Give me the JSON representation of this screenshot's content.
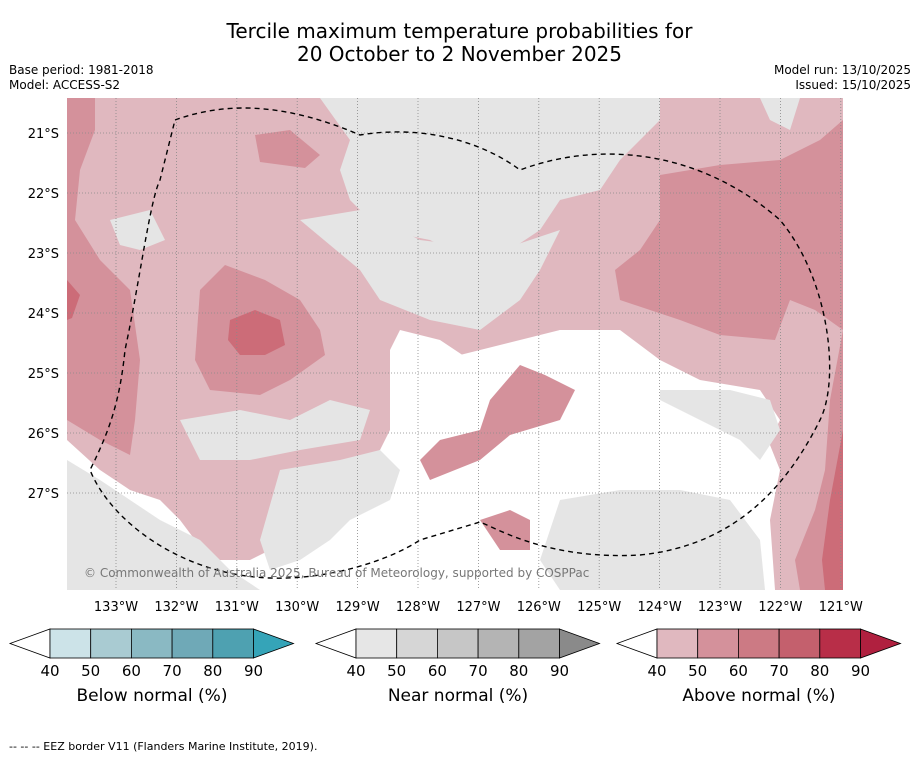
{
  "title_line1": "Tercile maximum temperature probabilities for",
  "title_line2": "20 October to 2 November 2025",
  "base_period": "Base period: 1981-2018",
  "model": "Model: ACCESS-S2",
  "model_run": "Model run: 13/10/2025",
  "issued": "Issued: 15/10/2025",
  "copyright": "© Commonwealth of Australia 2025, Bureau of Meteorology, supported by COSPPac",
  "lat_labels": [
    "21°S",
    "22°S",
    "23°S",
    "24°S",
    "25°S",
    "26°S",
    "27°S"
  ],
  "lon_labels": [
    "133°W",
    "132°W",
    "131°W",
    "130°W",
    "129°W",
    "128°W",
    "127°W",
    "126°W",
    "125°W",
    "124°W",
    "123°W",
    "122°W",
    "121°W"
  ],
  "colorbars": [
    {
      "label": "Below normal (%)",
      "ticks": [
        "40",
        "50",
        "60",
        "70",
        "80",
        "90"
      ],
      "colors": [
        "#ffffff",
        "#cce3e8",
        "#a9cbd2",
        "#8ab9c3",
        "#6fa9b7",
        "#4ea1b1",
        "#35a4b8"
      ]
    },
    {
      "label": "Near normal (%)",
      "ticks": [
        "40",
        "50",
        "60",
        "70",
        "80",
        "90"
      ],
      "colors": [
        "#ffffff",
        "#e6e6e6",
        "#d6d6d6",
        "#c6c6c6",
        "#b4b4b4",
        "#a3a3a3",
        "#8a8a8a"
      ]
    },
    {
      "label": "Above normal (%)",
      "ticks": [
        "40",
        "50",
        "60",
        "70",
        "80",
        "90"
      ],
      "colors": [
        "#ffffff",
        "#e0b8bf",
        "#d4919b",
        "#cc7a84",
        "#c4606d",
        "#b82e48",
        "#b0203f"
      ]
    }
  ],
  "footer": "--  --  -- EEZ border V11 (Flanders Marine Institute, 2019).",
  "colors": {
    "near": "#e5e5e5",
    "above1": "#e0b8bf",
    "above2": "#d4919b",
    "above3": "#cc6c78",
    "grid": "#777777"
  }
}
